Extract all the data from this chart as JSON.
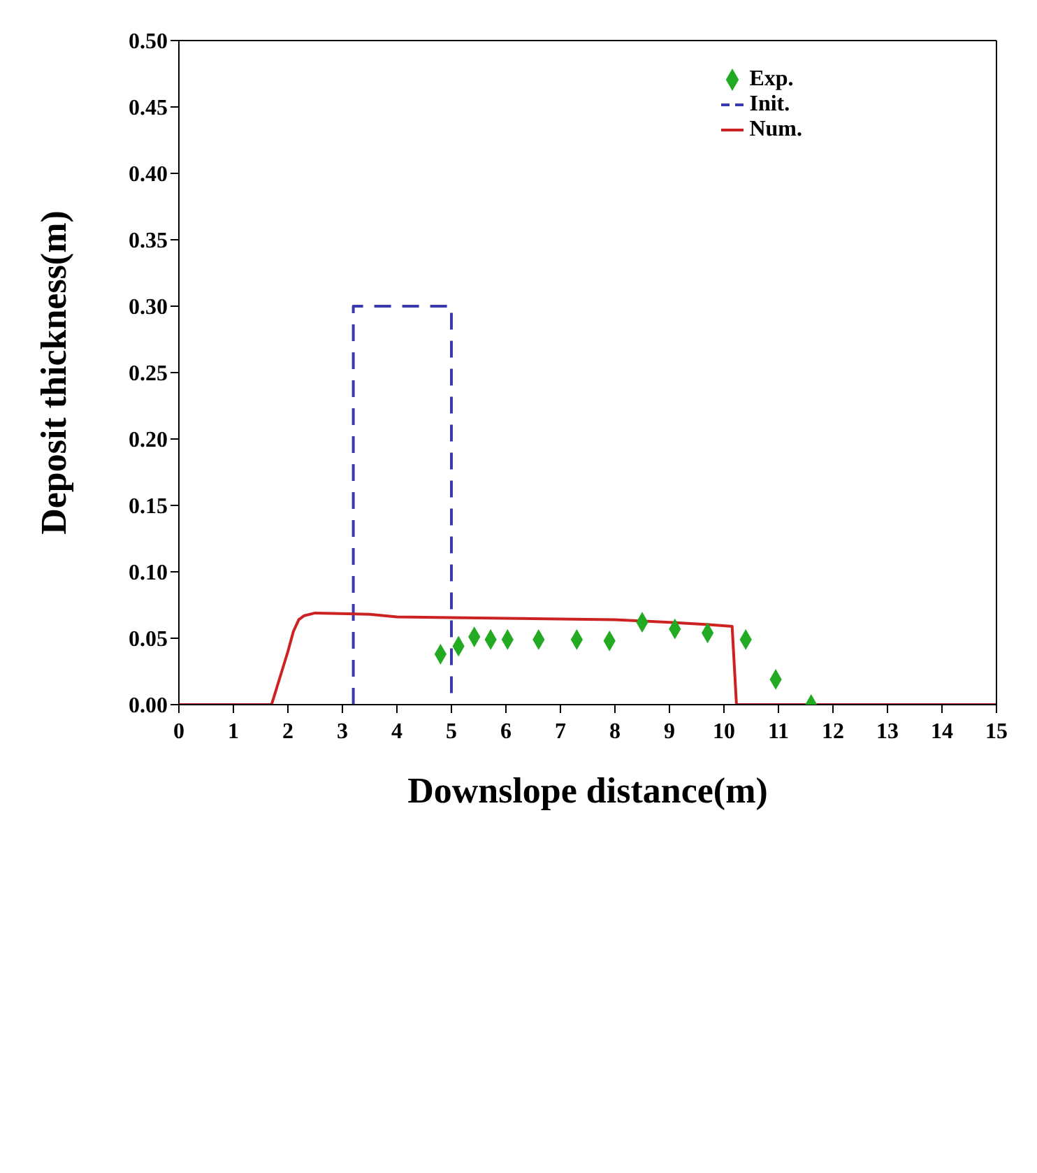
{
  "chart_data": {
    "type": "line",
    "xlabel": "Downslope distance(m)",
    "ylabel": "Deposit thickness(m)",
    "legend": "top right",
    "xlim": [
      0,
      15
    ],
    "xticks": [
      0,
      1,
      2,
      3,
      4,
      5,
      6,
      7,
      8,
      9,
      10,
      11,
      12,
      13,
      14,
      15
    ],
    "ylim": [
      0,
      0.5
    ],
    "yticks": [
      {
        "value": 0,
        "label": "0.00"
      },
      {
        "value": 0.05,
        "label": "0.05"
      },
      {
        "value": 0.1,
        "label": "0.10"
      },
      {
        "value": 0.15,
        "label": "0.15"
      },
      {
        "value": 0.2,
        "label": "0.20"
      },
      {
        "value": 0.25,
        "label": "0.25"
      },
      {
        "value": 0.3,
        "label": "0.30"
      },
      {
        "value": 0.35,
        "label": "0.35"
      },
      {
        "value": 0.4,
        "label": "0.40"
      },
      {
        "value": 0.45,
        "label": "0.45"
      },
      {
        "value": 0.5,
        "label": "0.50"
      }
    ],
    "series": [
      {
        "name": "Exp.",
        "type": "scatter",
        "marker": "diamond",
        "color": "#22aa22",
        "x": [
          4.8,
          5.13,
          5.42,
          5.72,
          6.03,
          6.6,
          7.3,
          7.9,
          8.5,
          9.1,
          9.7,
          10.4,
          10.95,
          11.6
        ],
        "values": [
          0.038,
          0.044,
          0.051,
          0.049,
          0.049,
          0.049,
          0.049,
          0.048,
          0.062,
          0.057,
          0.054,
          0.049,
          0.019,
          0.0
        ]
      },
      {
        "name": "Init.",
        "type": "line",
        "line_style": "dashed",
        "marker": "none",
        "color": "#3a3aaa",
        "x": [
          3.2,
          3.2,
          5.0,
          5.0
        ],
        "values": [
          0,
          0.3,
          0.3,
          0
        ]
      },
      {
        "name": "Num.",
        "type": "line",
        "line_style": "solid",
        "marker": "none",
        "color": "#cc2222",
        "x": [
          0,
          1.7,
          1.85,
          2.0,
          2.1,
          2.2,
          2.3,
          2.5,
          3.5,
          4.0,
          6.0,
          8.0,
          9.0,
          9.8,
          10.15,
          10.23,
          15
        ],
        "values": [
          0,
          0,
          0.02,
          0.04,
          0.055,
          0.064,
          0.067,
          0.069,
          0.068,
          0.066,
          0.065,
          0.064,
          0.062,
          0.06,
          0.059,
          0,
          0
        ]
      }
    ]
  }
}
